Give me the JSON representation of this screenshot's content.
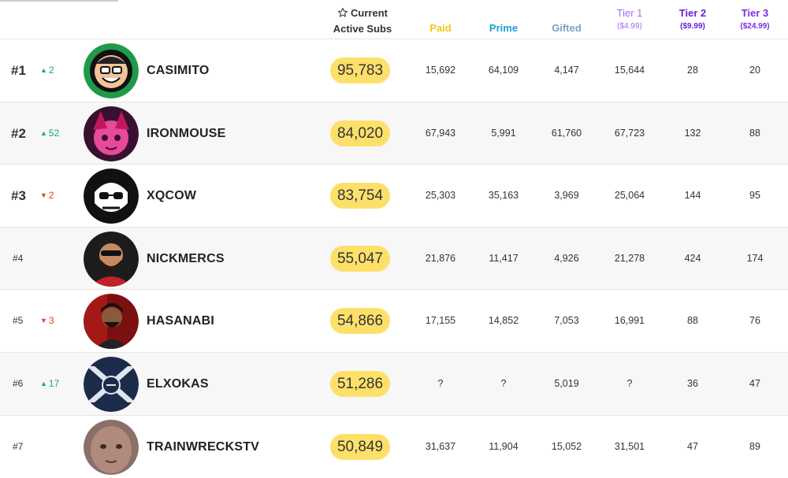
{
  "header": {
    "active_subs": "Current\nActive Subs",
    "active_line1": "Current",
    "active_line2": "Active Subs",
    "paid": "Paid",
    "prime": "Prime",
    "gifted": "Gifted",
    "tier1": "Tier 1",
    "tier1_price": "($4.99)",
    "tier2": "Tier 2",
    "tier2_price": "($9.99)",
    "tier3": "Tier 3",
    "tier3_price": "($24.99)"
  },
  "colors": {
    "paid": "#f5c518",
    "prime": "#1a9fd8",
    "gifted": "#7aa0c4",
    "tier1": "#a56cf0",
    "tier2": "#6b1fd6",
    "tier3": "#7a2ee6",
    "pill": "#fde06a",
    "up": "#1aa385",
    "down": "#e0401c"
  },
  "rows": [
    {
      "rank": "#1",
      "change": "2",
      "dir": "up",
      "name": "CASIMITO",
      "active": "95,783",
      "paid": "15,692",
      "prime": "64,109",
      "gifted": "4,147",
      "tier1": "15,644",
      "tier2": "28",
      "tier3": "20",
      "avatar_icon": "casimito-avatar-icon"
    },
    {
      "rank": "#2",
      "change": "52",
      "dir": "up",
      "name": "IRONMOUSE",
      "active": "84,020",
      "paid": "67,943",
      "prime": "5,991",
      "gifted": "61,760",
      "tier1": "67,723",
      "tier2": "132",
      "tier3": "88",
      "avatar_icon": "ironmouse-avatar-icon"
    },
    {
      "rank": "#3",
      "change": "2",
      "dir": "down",
      "name": "XQCOW",
      "active": "83,754",
      "paid": "25,303",
      "prime": "35,163",
      "gifted": "3,969",
      "tier1": "25,064",
      "tier2": "144",
      "tier3": "95",
      "avatar_icon": "xqcow-avatar-icon"
    },
    {
      "rank": "#4",
      "change": "",
      "dir": "",
      "name": "NICKMERCS",
      "active": "55,047",
      "paid": "21,876",
      "prime": "11,417",
      "gifted": "4,926",
      "tier1": "21,278",
      "tier2": "424",
      "tier3": "174",
      "avatar_icon": "nickmercs-avatar-icon"
    },
    {
      "rank": "#5",
      "change": "3",
      "dir": "down",
      "name": "HASANABI",
      "active": "54,866",
      "paid": "17,155",
      "prime": "14,852",
      "gifted": "7,053",
      "tier1": "16,991",
      "tier2": "88",
      "tier3": "76",
      "avatar_icon": "hasanabi-avatar-icon"
    },
    {
      "rank": "#6",
      "change": "17",
      "dir": "up",
      "name": "ELXOKAS",
      "active": "51,286",
      "paid": "?",
      "prime": "?",
      "gifted": "5,019",
      "tier1": "?",
      "tier2": "36",
      "tier3": "47",
      "avatar_icon": "elxokas-avatar-icon"
    },
    {
      "rank": "#7",
      "change": "",
      "dir": "",
      "name": "TRAINWRECKSTV",
      "active": "50,849",
      "paid": "31,637",
      "prime": "11,904",
      "gifted": "15,052",
      "tier1": "31,501",
      "tier2": "47",
      "tier3": "89",
      "avatar_icon": "trainwreckstv-avatar-icon"
    }
  ]
}
